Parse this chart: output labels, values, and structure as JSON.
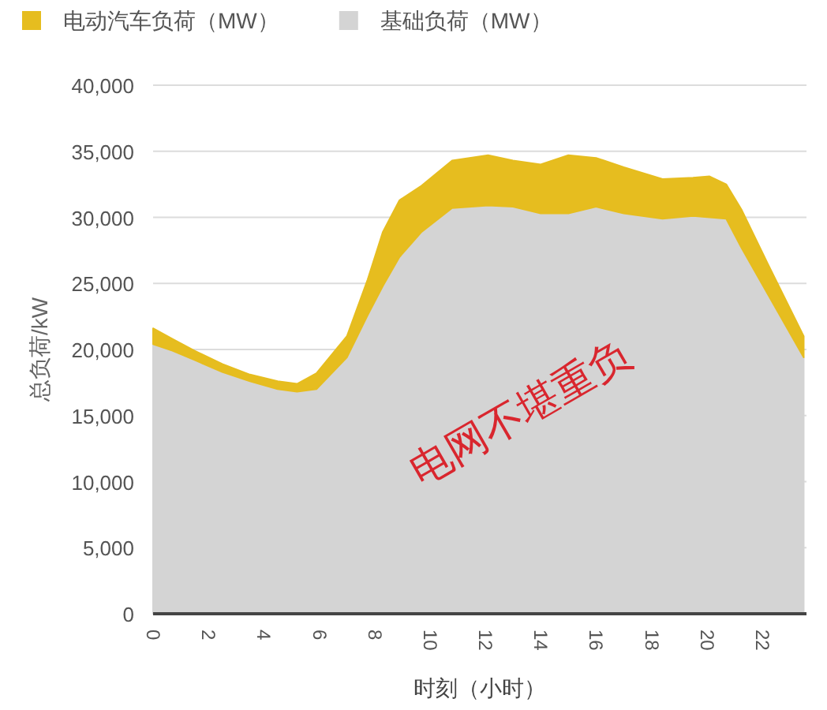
{
  "chart_data": {
    "type": "area",
    "stacked": true,
    "xlabel": "时刻（小时）",
    "ylabel": "总负荷/kW",
    "x": [
      0,
      0.7,
      1.5,
      2.5,
      3.5,
      4.5,
      5.2,
      5.9,
      7,
      7.75,
      8.3,
      8.9,
      9.7,
      10.8,
      12.1,
      13,
      14,
      15,
      16,
      17,
      18.4,
      19.5,
      20.1,
      20.7,
      21.25,
      22.2,
      23.5
    ],
    "series": [
      {
        "name": "基础负荷（MW）",
        "color": "#d4d4d4",
        "values": [
          20400,
          19900,
          19200,
          18300,
          17600,
          17000,
          16800,
          17000,
          19400,
          22600,
          24800,
          27000,
          28900,
          30700,
          30900,
          30800,
          30300,
          30300,
          30800,
          30300,
          29900,
          30100,
          30000,
          29900,
          27700,
          24200,
          19400
        ]
      },
      {
        "name": "电动汽车负荷（MW）",
        "color": "#e6bd1f",
        "values": [
          1200,
          900,
          700,
          600,
          500,
          600,
          600,
          1200,
          1600,
          2700,
          4100,
          4300,
          3500,
          3600,
          3800,
          3500,
          3700,
          4400,
          3700,
          3500,
          3000,
          2900,
          3100,
          2600,
          2900,
          2300,
          1600
        ]
      }
    ],
    "xlim": [
      0,
      23.6
    ],
    "xticks": [
      0,
      2,
      4,
      6,
      8,
      10,
      12,
      14,
      16,
      18,
      20,
      22
    ],
    "ylim": [
      0,
      40000
    ],
    "yticks": [
      {
        "value": 0,
        "label": "0"
      },
      {
        "value": 5000,
        "label": "5,000"
      },
      {
        "value": 10000,
        "label": "10,000"
      },
      {
        "value": 15000,
        "label": "15,000"
      },
      {
        "value": 20000,
        "label": "20,000"
      },
      {
        "value": 25000,
        "label": "25,000"
      },
      {
        "value": 30000,
        "label": "30,000"
      },
      {
        "value": 35000,
        "label": "35,000"
      },
      {
        "value": 40000,
        "label": "40,000"
      }
    ],
    "grid": "y",
    "legend": "top left",
    "annotations": [
      "电网不堪重负"
    ]
  }
}
